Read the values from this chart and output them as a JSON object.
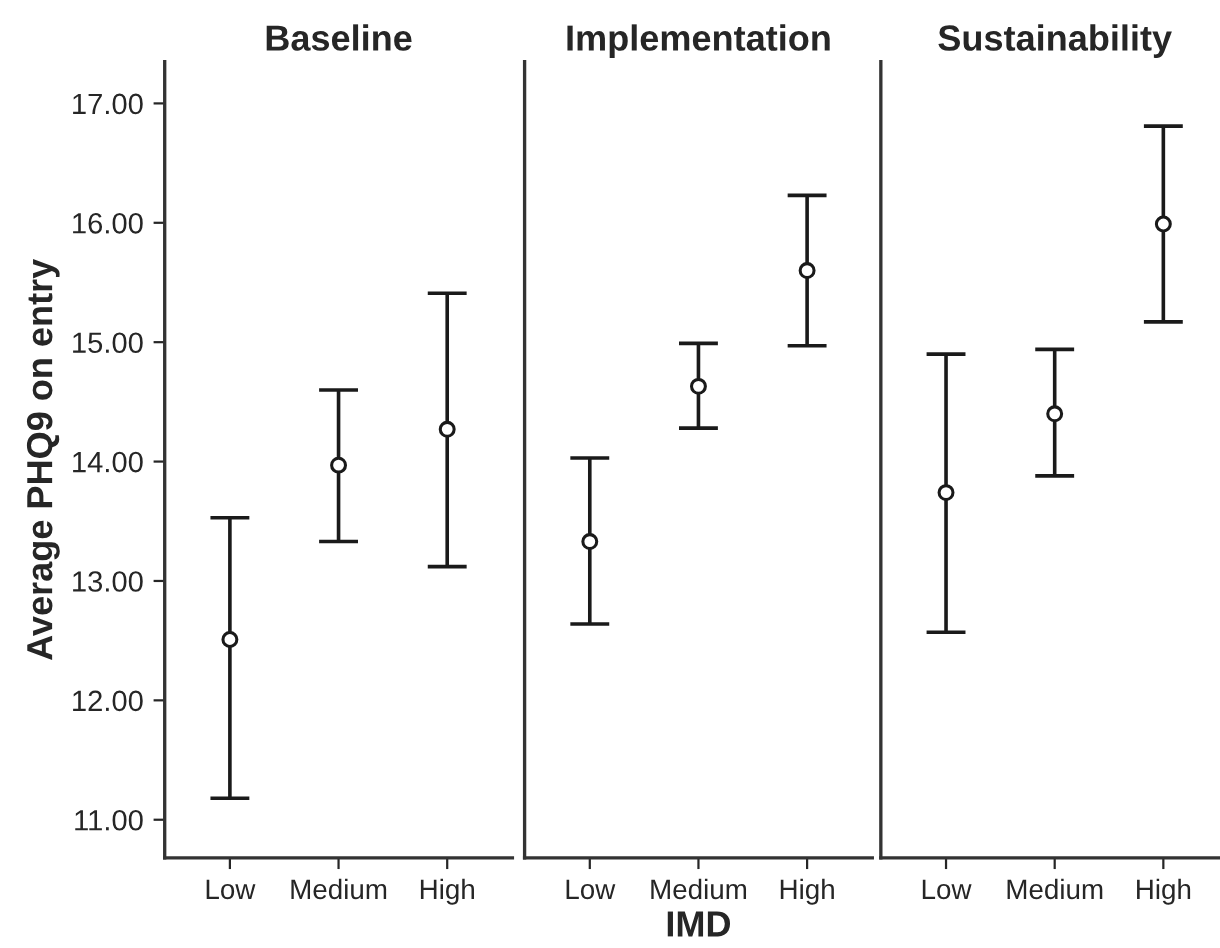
{
  "chart_data": [
    {
      "type": "scatter",
      "title": "Baseline",
      "ylabel": "Average PHQ9 on entry",
      "categories": [
        "Low",
        "Medium",
        "High"
      ],
      "values": [
        12.51,
        13.97,
        14.27
      ],
      "errors": [
        [
          11.18,
          13.53
        ],
        [
          13.33,
          14.6
        ],
        [
          13.12,
          15.41
        ]
      ],
      "color": "#1a1a1a",
      "marker": "circle",
      "ylim": [
        10.68,
        17.35
      ],
      "yticks": [
        {
          "value": 11,
          "label": "11.00"
        },
        {
          "value": 12,
          "label": "12.00"
        },
        {
          "value": 13,
          "label": "13.00"
        },
        {
          "value": 14,
          "label": "14.00"
        },
        {
          "value": 15,
          "label": "15.00"
        },
        {
          "value": 16,
          "label": "16.00"
        },
        {
          "value": 17,
          "label": "17.00"
        }
      ],
      "grid": false,
      "legend": false
    },
    {
      "type": "scatter",
      "title": "Implementation",
      "xlabel": "IMD",
      "categories": [
        "Low",
        "Medium",
        "High"
      ],
      "values": [
        13.33,
        14.63,
        15.6
      ],
      "errors": [
        [
          12.64,
          14.03
        ],
        [
          14.28,
          14.99
        ],
        [
          14.97,
          16.23
        ]
      ],
      "color": "#1a1a1a",
      "marker": "circle",
      "ylim": [
        10.68,
        17.35
      ],
      "tick_labels": "x",
      "grid": false,
      "legend": false
    },
    {
      "type": "scatter",
      "title": "Sustainability",
      "categories": [
        "Low",
        "Medium",
        "High"
      ],
      "values": [
        13.74,
        14.4,
        15.99
      ],
      "errors": [
        [
          12.57,
          14.9
        ],
        [
          13.88,
          14.94
        ],
        [
          15.17,
          16.81
        ]
      ],
      "color": "#1a1a1a",
      "marker": "circle",
      "ylim": [
        10.68,
        17.35
      ],
      "tick_labels": "x",
      "grid": false,
      "legend": false
    }
  ]
}
